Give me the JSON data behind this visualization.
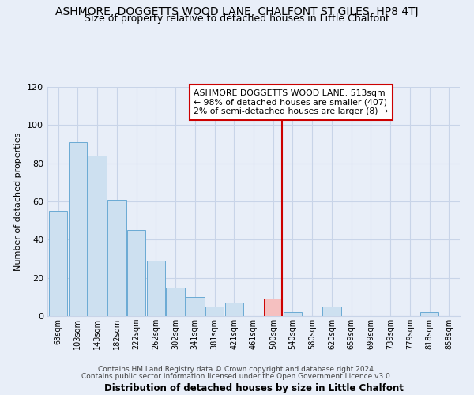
{
  "title": "ASHMORE, DOGGETTS WOOD LANE, CHALFONT ST GILES, HP8 4TJ",
  "subtitle": "Size of property relative to detached houses in Little Chalfont",
  "xlabel": "Distribution of detached houses by size in Little Chalfont",
  "ylabel": "Number of detached properties",
  "categories": [
    "63sqm",
    "103sqm",
    "143sqm",
    "182sqm",
    "222sqm",
    "262sqm",
    "302sqm",
    "341sqm",
    "381sqm",
    "421sqm",
    "461sqm",
    "500sqm",
    "540sqm",
    "580sqm",
    "620sqm",
    "659sqm",
    "699sqm",
    "739sqm",
    "779sqm",
    "818sqm",
    "858sqm"
  ],
  "values": [
    55,
    91,
    84,
    61,
    45,
    29,
    15,
    10,
    5,
    7,
    0,
    9,
    2,
    0,
    5,
    0,
    0,
    0,
    0,
    2,
    0
  ],
  "bar_color": "#cde0f0",
  "bar_edge_color": "#6aaad4",
  "highlight_bar_index": 11,
  "highlight_bar_color": "#f5c0c0",
  "highlight_bar_edge_color": "#cc0000",
  "vline_color": "#cc0000",
  "ylim": [
    0,
    120
  ],
  "yticks": [
    0,
    20,
    40,
    60,
    80,
    100,
    120
  ],
  "annotation_title": "ASHMORE DOGGETTS WOOD LANE: 513sqm",
  "annotation_line1": "← 98% of detached houses are smaller (407)",
  "annotation_line2": "2% of semi-detached houses are larger (8) →",
  "annotation_box_color": "#ffffff",
  "annotation_box_edge_color": "#cc0000",
  "footnote1": "Contains HM Land Registry data © Crown copyright and database right 2024.",
  "footnote2": "Contains public sector information licensed under the Open Government Licence v3.0.",
  "bg_color": "#e8eef8",
  "grid_color": "#c8d4e8",
  "title_fontsize": 10,
  "subtitle_fontsize": 9
}
